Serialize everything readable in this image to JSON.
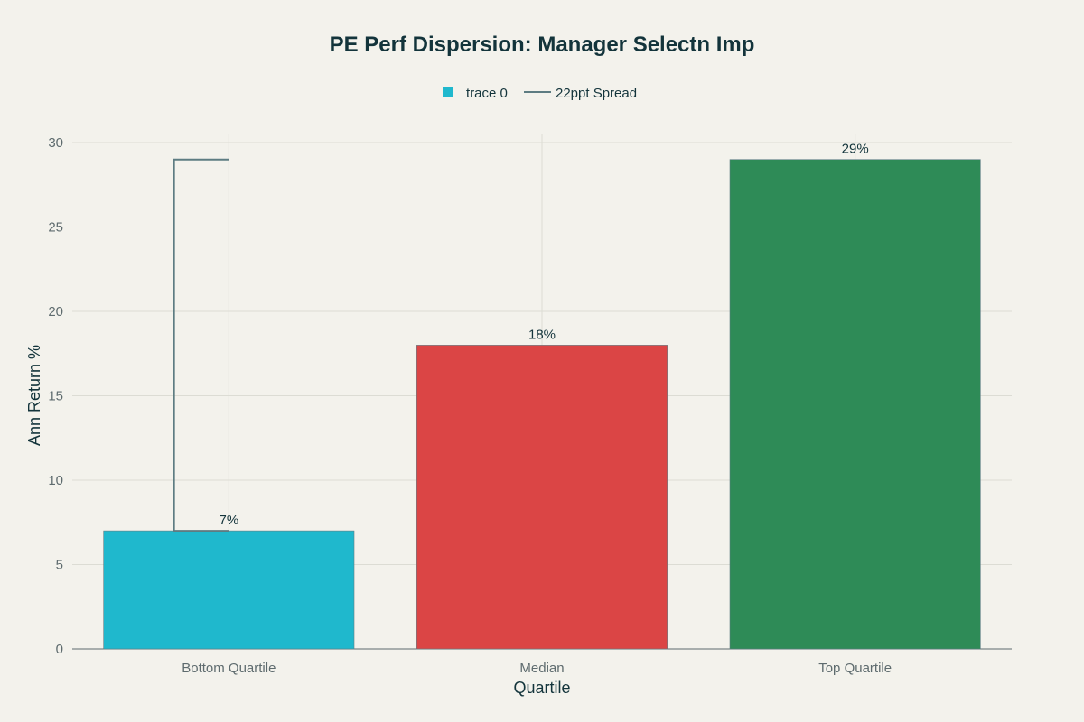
{
  "chart_data": {
    "type": "bar",
    "title": "PE Perf Dispersion: Manager Selectn Imp",
    "xlabel": "Quartile",
    "ylabel": "Ann Return %",
    "categories": [
      "Bottom Quartile",
      "Median",
      "Top Quartile"
    ],
    "series": [
      {
        "name": "trace 0",
        "type": "bar",
        "values": [
          7,
          18,
          29
        ],
        "labels": [
          "7%",
          "18%",
          "29%"
        ],
        "colors": [
          "#1FB8CD",
          "#DB4545",
          "#2E8B57"
        ]
      },
      {
        "name": "22ppt Spread",
        "type": "line",
        "x": [
          0,
          -0.175,
          -0.175,
          0
        ],
        "y": [
          7,
          7,
          29,
          29
        ],
        "color": "#5D7C82"
      }
    ],
    "ylim": [
      0,
      30
    ],
    "yticks": [
      0,
      5,
      10,
      15,
      20,
      25,
      30
    ],
    "grid": true,
    "legend": "top-center"
  }
}
